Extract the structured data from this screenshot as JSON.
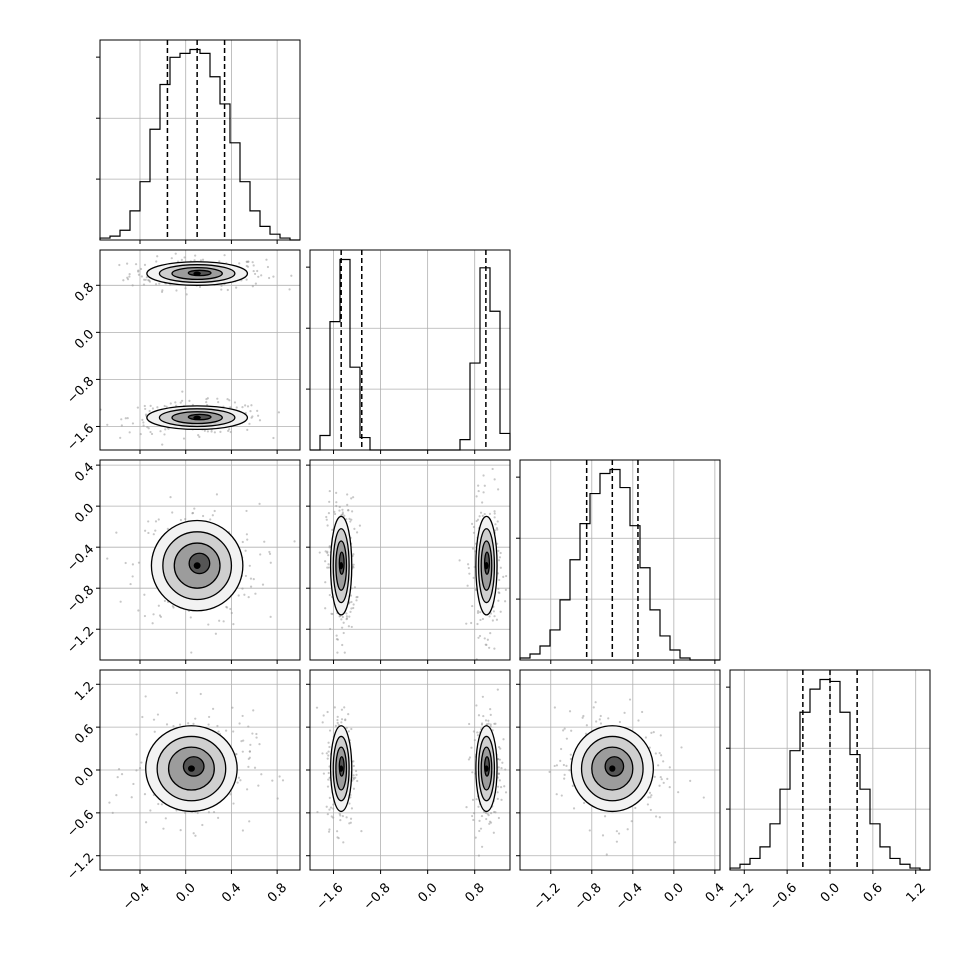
{
  "chart_data": {
    "type": "corner",
    "grid": true,
    "parameters": [
      {
        "range": [
          -0.75,
          1.0
        ],
        "ticks": [
          -0.4,
          0.0,
          0.4,
          0.8
        ],
        "tick_labels": [
          "−0.4",
          "0.0",
          "0.4",
          "0.8"
        ],
        "quantiles": [
          -0.16,
          0.1,
          0.34
        ],
        "hist_bins": [
          -0.75,
          -0.6625,
          -0.575,
          -0.4875,
          -0.4,
          -0.3125,
          -0.225,
          -0.1375,
          -0.05,
          0.0375,
          0.125,
          0.2125,
          0.3,
          0.3875,
          0.475,
          0.5625,
          0.65,
          0.7375,
          0.825,
          0.9125,
          1.0
        ],
        "hist_counts": [
          0.01,
          0.02,
          0.05,
          0.15,
          0.3,
          0.57,
          0.8,
          0.94,
          0.96,
          0.98,
          0.96,
          0.84,
          0.7,
          0.5,
          0.3,
          0.15,
          0.07,
          0.03,
          0.01,
          0.0
        ]
      },
      {
        "range": [
          -2.0,
          1.4
        ],
        "ticks": [
          -1.6,
          -0.8,
          0.0,
          0.8
        ],
        "tick_labels": [
          "−1.6",
          "−0.8",
          "0.0",
          "0.8"
        ],
        "quantiles": [
          -1.47,
          -1.12,
          0.99
        ],
        "hist_bins": [
          -2.0,
          -1.83,
          -1.66,
          -1.49,
          -1.32,
          -1.15,
          -0.98,
          -0.81,
          -0.64,
          -0.47,
          -0.3,
          -0.13,
          0.04,
          0.21,
          0.38,
          0.55,
          0.72,
          0.89,
          1.06,
          1.23,
          1.4
        ],
        "hist_counts": [
          0.0,
          0.07,
          0.62,
          0.92,
          0.4,
          0.06,
          0.0,
          0.0,
          0.0,
          0.0,
          0.0,
          0.0,
          0.0,
          0.0,
          0.0,
          0.05,
          0.42,
          0.88,
          0.67,
          0.08
        ]
      },
      {
        "range": [
          -1.5,
          0.45
        ],
        "ticks": [
          -1.2,
          -0.8,
          -0.4,
          0.0,
          0.4
        ],
        "tick_labels": [
          "−1.2",
          "−0.8",
          "−0.4",
          "0.0",
          "0.4"
        ],
        "quantiles": [
          -0.85,
          -0.6,
          -0.35
        ],
        "hist_bins": [
          -1.5,
          -1.4025,
          -1.305,
          -1.2075,
          -1.11,
          -1.0125,
          -0.915,
          -0.8175,
          -0.72,
          -0.6225,
          -0.525,
          -0.4275,
          -0.33,
          -0.2325,
          -0.135,
          -0.0375,
          0.06,
          0.1575,
          0.255,
          0.3525,
          0.45
        ],
        "hist_counts": [
          0.01,
          0.03,
          0.07,
          0.15,
          0.3,
          0.5,
          0.68,
          0.83,
          0.93,
          0.95,
          0.86,
          0.67,
          0.46,
          0.25,
          0.12,
          0.05,
          0.01,
          0.0,
          0.0,
          0.0
        ]
      },
      {
        "range": [
          -1.4,
          1.4
        ],
        "ticks": [
          -1.2,
          -0.6,
          0.0,
          0.6,
          1.2
        ],
        "tick_labels": [
          "−1.2",
          "−0.6",
          "0.0",
          "0.6",
          "1.2"
        ],
        "quantiles": [
          -0.38,
          0.0,
          0.38
        ],
        "hist_bins": [
          -1.4,
          -1.26,
          -1.12,
          -0.98,
          -0.84,
          -0.7,
          -0.56,
          -0.42,
          -0.28,
          -0.14,
          0.0,
          0.14,
          0.28,
          0.42,
          0.56,
          0.7,
          0.84,
          0.98,
          1.12,
          1.26,
          1.4
        ],
        "hist_counts": [
          0.01,
          0.03,
          0.06,
          0.12,
          0.24,
          0.42,
          0.62,
          0.82,
          0.94,
          0.99,
          0.98,
          0.82,
          0.6,
          0.42,
          0.24,
          0.12,
          0.06,
          0.03,
          0.01,
          0.0
        ]
      }
    ],
    "pairs": [
      {
        "x": 0,
        "y": 1,
        "modes": [
          {
            "cx": 0.1,
            "cy": 1.0,
            "sx": 0.22,
            "sy": 0.1
          },
          {
            "cx": 0.1,
            "cy": -1.45,
            "sx": 0.22,
            "sy": 0.1
          }
        ]
      },
      {
        "x": 0,
        "y": 2,
        "modes": [
          {
            "cx": 0.1,
            "cy": -0.58,
            "sx": 0.2,
            "sy": 0.22
          }
        ]
      },
      {
        "x": 1,
        "y": 2,
        "modes": [
          {
            "cx": -1.47,
            "cy": -0.58,
            "sx": 0.09,
            "sy": 0.24
          },
          {
            "cx": 1.0,
            "cy": -0.58,
            "sx": 0.09,
            "sy": 0.24
          }
        ]
      },
      {
        "x": 0,
        "y": 3,
        "modes": [
          {
            "cx": 0.05,
            "cy": 0.02,
            "sx": 0.2,
            "sy": 0.3
          }
        ]
      },
      {
        "x": 1,
        "y": 3,
        "modes": [
          {
            "cx": -1.47,
            "cy": 0.02,
            "sx": 0.09,
            "sy": 0.3
          },
          {
            "cx": 1.0,
            "cy": 0.02,
            "sx": 0.09,
            "sy": 0.3
          }
        ]
      },
      {
        "x": 2,
        "y": 3,
        "modes": [
          {
            "cx": -0.6,
            "cy": 0.02,
            "sx": 0.2,
            "sy": 0.3
          }
        ]
      }
    ]
  }
}
